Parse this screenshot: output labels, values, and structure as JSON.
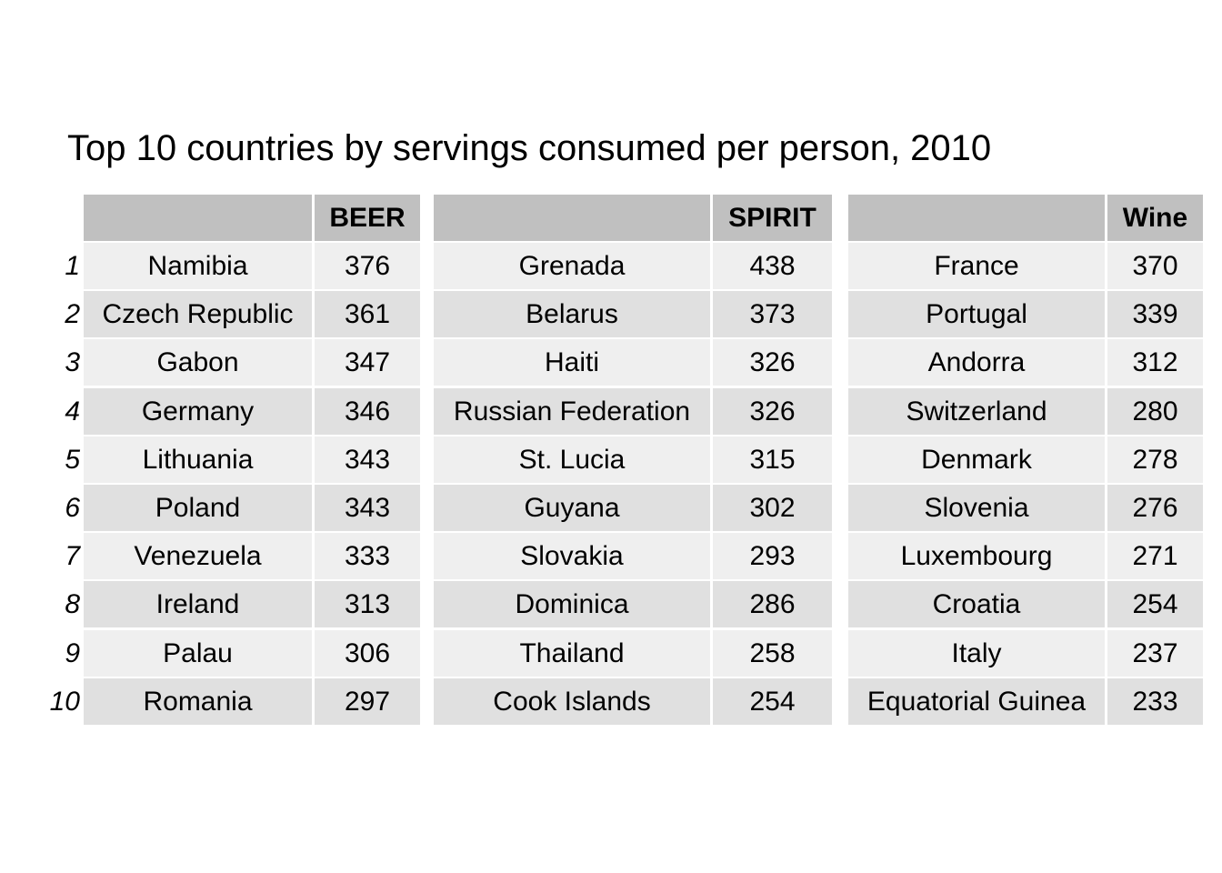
{
  "title": "Top 10 countries by servings consumed per person, 2010",
  "colors": {
    "header_bg": "#c0c0c0",
    "row_light": "#efefef",
    "row_dark": "#e0e0e0",
    "text": "#000000",
    "background": "#ffffff"
  },
  "chart_data": {
    "type": "table",
    "title": "Top 10 countries by servings consumed per person, 2010",
    "ranks": [
      "1",
      "2",
      "3",
      "4",
      "5",
      "6",
      "7",
      "8",
      "9",
      "10"
    ],
    "tables": [
      {
        "header": "BEER",
        "rows": [
          {
            "country": "Namibia",
            "value": 376
          },
          {
            "country": "Czech Republic",
            "value": 361
          },
          {
            "country": "Gabon",
            "value": 347
          },
          {
            "country": "Germany",
            "value": 346
          },
          {
            "country": "Lithuania",
            "value": 343
          },
          {
            "country": "Poland",
            "value": 343
          },
          {
            "country": "Venezuela",
            "value": 333
          },
          {
            "country": "Ireland",
            "value": 313
          },
          {
            "country": "Palau",
            "value": 306
          },
          {
            "country": "Romania",
            "value": 297
          }
        ]
      },
      {
        "header": "SPIRIT",
        "rows": [
          {
            "country": "Grenada",
            "value": 438
          },
          {
            "country": "Belarus",
            "value": 373
          },
          {
            "country": "Haiti",
            "value": 326
          },
          {
            "country": "Russian Federation",
            "value": 326
          },
          {
            "country": "St. Lucia",
            "value": 315
          },
          {
            "country": "Guyana",
            "value": 302
          },
          {
            "country": "Slovakia",
            "value": 293
          },
          {
            "country": "Dominica",
            "value": 286
          },
          {
            "country": "Thailand",
            "value": 258
          },
          {
            "country": "Cook Islands",
            "value": 254
          }
        ]
      },
      {
        "header": "Wine",
        "rows": [
          {
            "country": "France",
            "value": 370
          },
          {
            "country": "Portugal",
            "value": 339
          },
          {
            "country": "Andorra",
            "value": 312
          },
          {
            "country": "Switzerland",
            "value": 280
          },
          {
            "country": "Denmark",
            "value": 278
          },
          {
            "country": "Slovenia",
            "value": 276
          },
          {
            "country": "Luxembourg",
            "value": 271
          },
          {
            "country": "Croatia",
            "value": 254
          },
          {
            "country": "Italy",
            "value": 237
          },
          {
            "country": "Equatorial Guinea",
            "value": 233
          }
        ]
      }
    ]
  }
}
